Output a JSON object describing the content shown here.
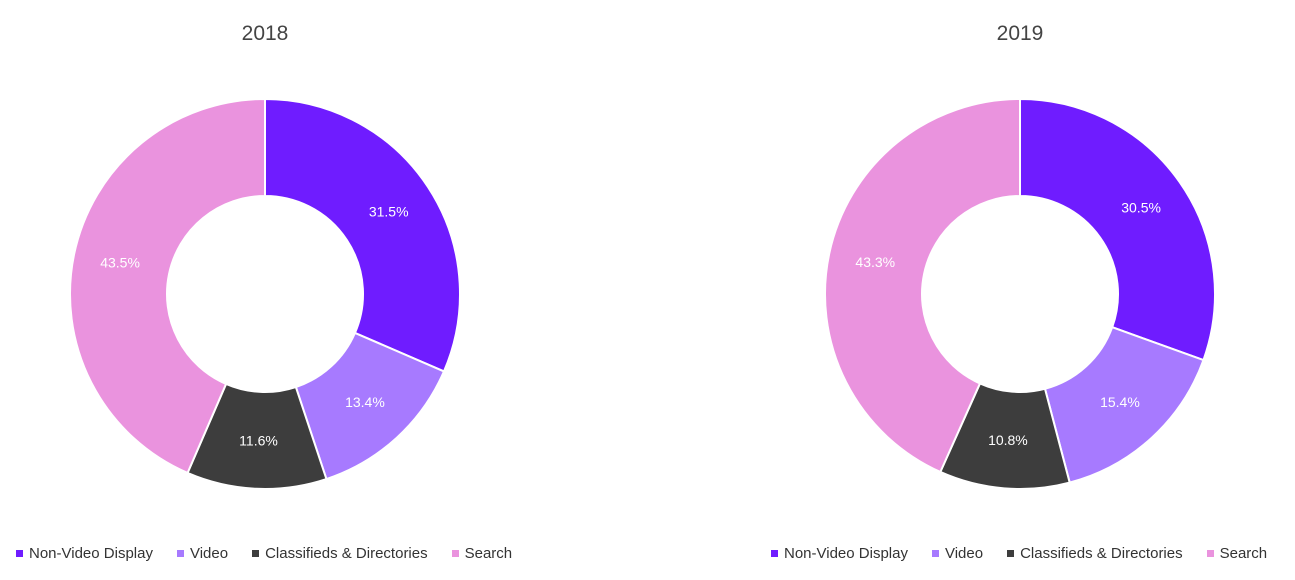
{
  "chart_data": [
    {
      "type": "pie",
      "variant": "donut",
      "title": "2018",
      "categories": [
        "Non-Video Display",
        "Video",
        "Classifieds & Directories",
        "Search"
      ],
      "values": [
        31.5,
        13.4,
        11.6,
        43.5
      ],
      "labels": [
        "31.5%",
        "13.4%",
        "11.6%",
        "43.5%"
      ],
      "colors": [
        "#6f1cff",
        "#a77aff",
        "#3d3d3d",
        "#ea93de"
      ],
      "legend_position": "bottom-left"
    },
    {
      "type": "pie",
      "variant": "donut",
      "title": "2019",
      "categories": [
        "Non-Video Display",
        "Video",
        "Classifieds & Directories",
        "Search"
      ],
      "values": [
        30.5,
        15.4,
        10.8,
        43.3
      ],
      "labels": [
        "30.5%",
        "15.4%",
        "10.8%",
        "43.3%"
      ],
      "colors": [
        "#6f1cff",
        "#a77aff",
        "#3d3d3d",
        "#ea93de"
      ],
      "legend_position": "bottom-left"
    }
  ]
}
